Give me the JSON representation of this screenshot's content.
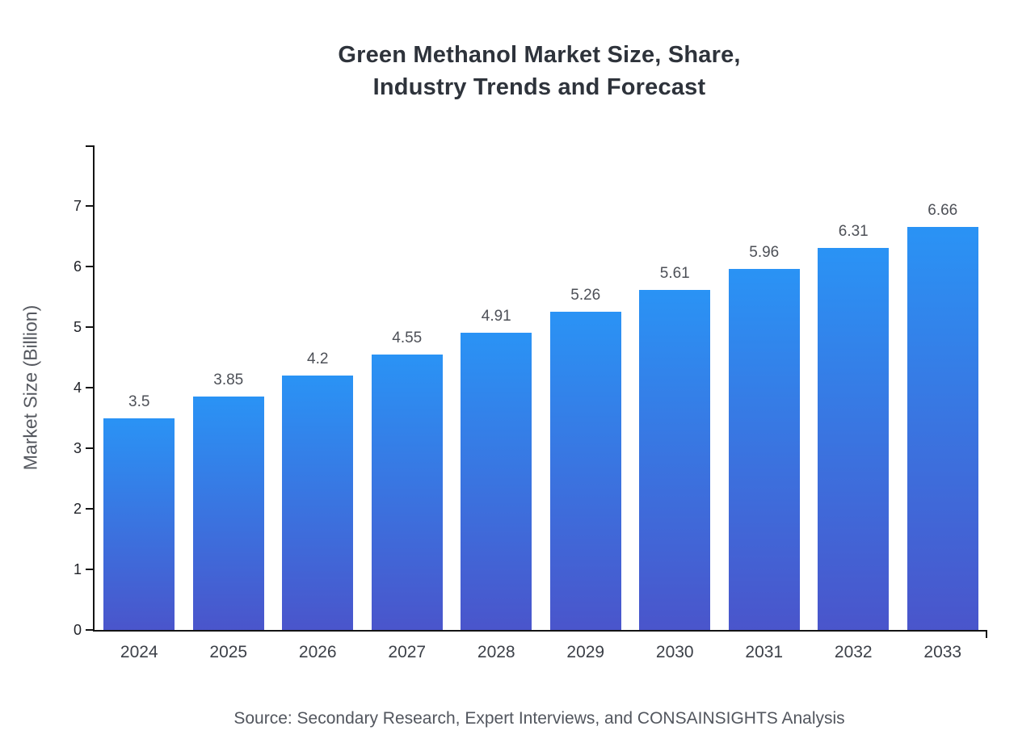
{
  "title": {
    "line1": "Green Methanol Market Size, Share,",
    "line2": "Industry Trends and Forecast"
  },
  "chart_data": {
    "type": "bar",
    "title": "Green Methanol Market Size, Share, Industry Trends and Forecast",
    "categories": [
      "2024",
      "2025",
      "2026",
      "2027",
      "2028",
      "2029",
      "2030",
      "2031",
      "2032",
      "2033"
    ],
    "values": [
      3.5,
      3.85,
      4.2,
      4.55,
      4.91,
      5.26,
      5.61,
      5.96,
      6.31,
      6.66
    ],
    "value_labels": [
      "3.5",
      "3.85",
      "4.2",
      "4.55",
      "4.91",
      "5.26",
      "5.61",
      "5.96",
      "6.31",
      "6.66"
    ],
    "xlabel": "",
    "ylabel": "Market Size (Billion)",
    "ylim": [
      0,
      8
    ],
    "yticks": [
      0,
      1,
      2,
      3,
      4,
      5,
      6,
      7
    ],
    "grid": false,
    "legend": "none",
    "bar_gradient_top": "#2a93f5",
    "bar_gradient_bottom": "#4a55cb"
  },
  "source": "Source: Secondary Research, Expert Interviews, and CONSAINSIGHTS Analysis"
}
